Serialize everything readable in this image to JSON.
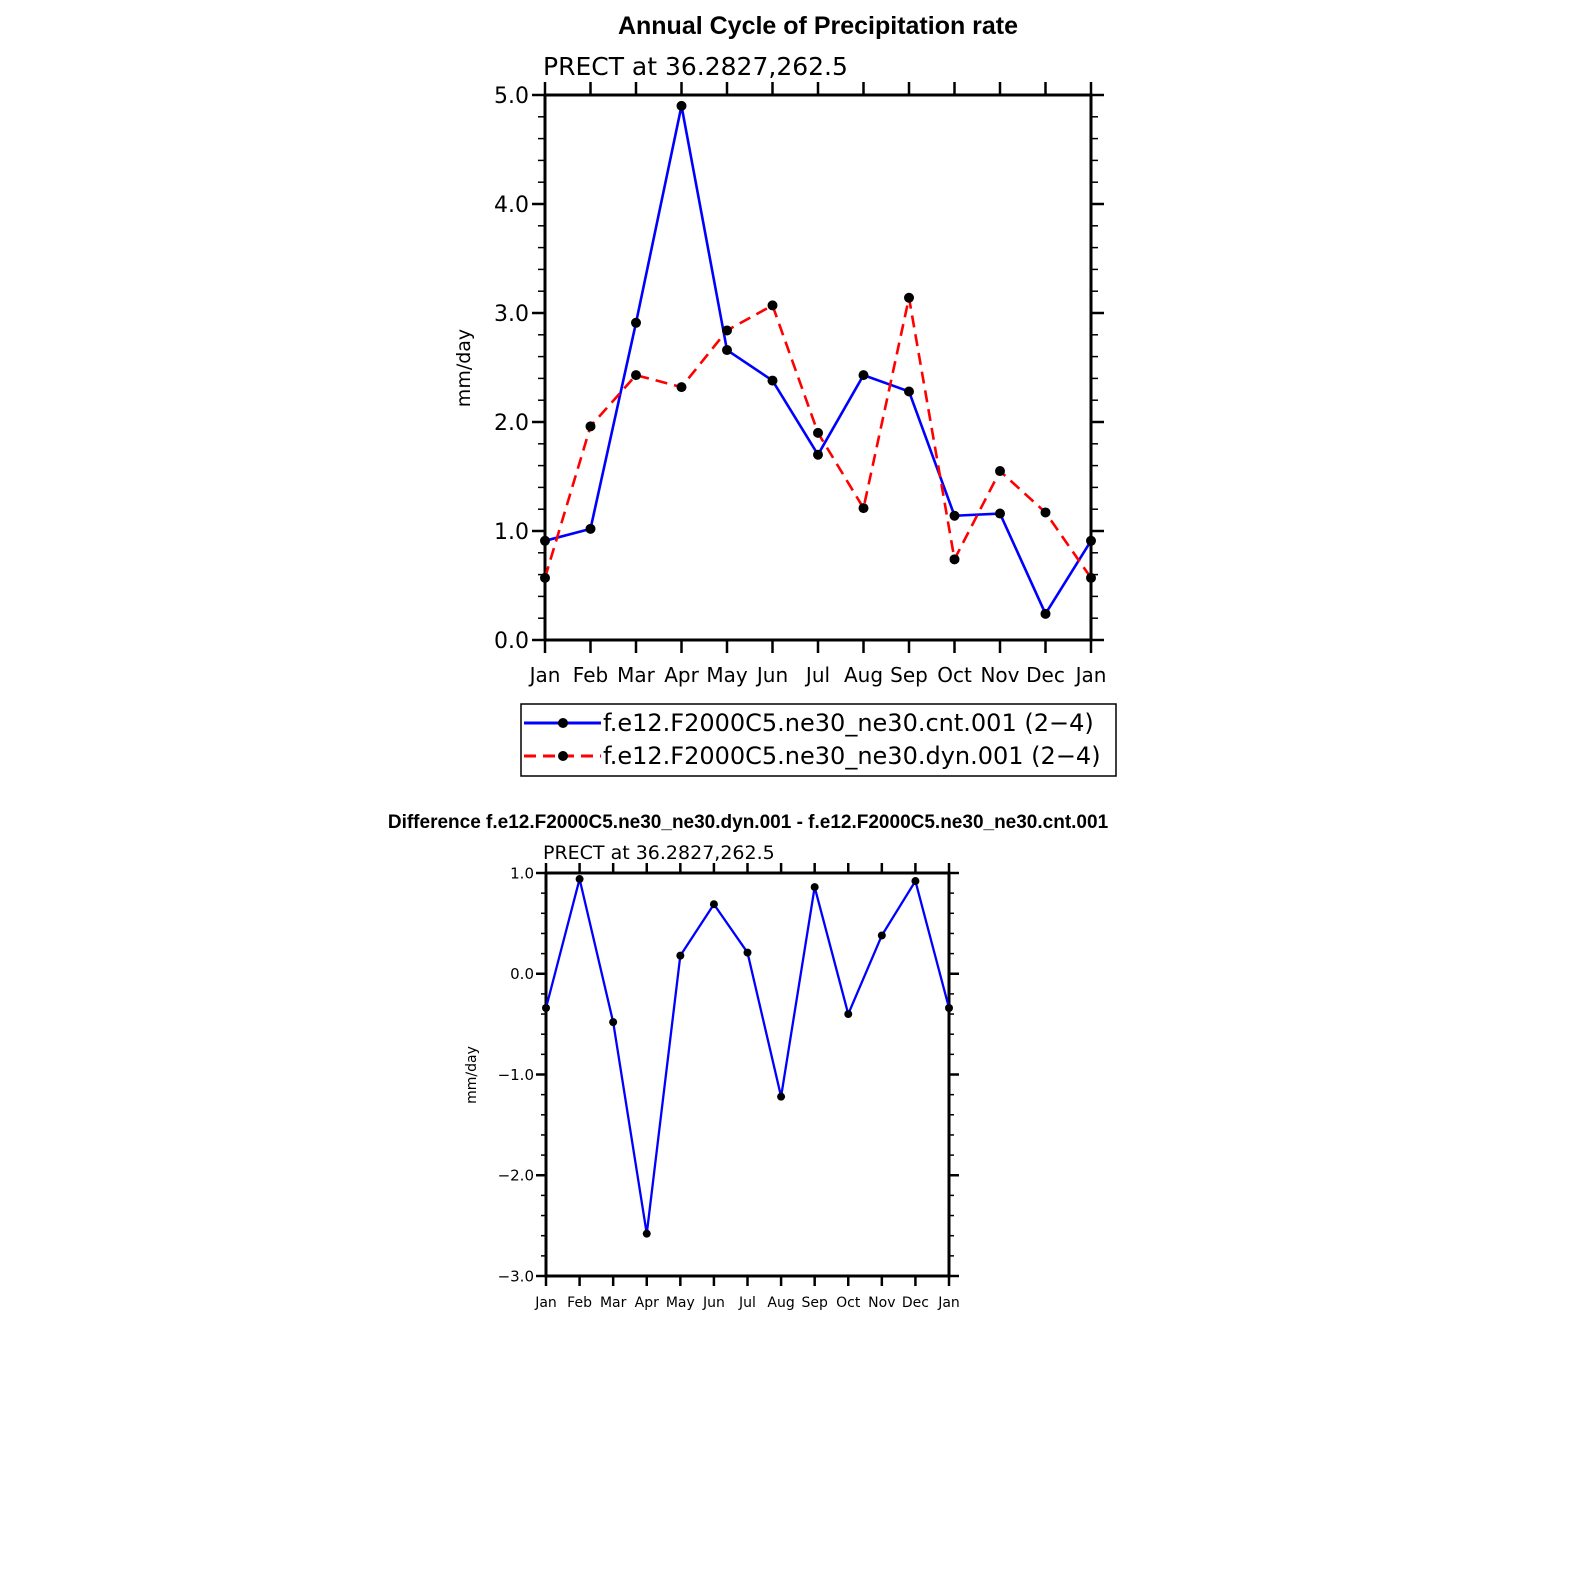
{
  "chart_data": [
    {
      "type": "line",
      "title": "Annual Cycle of Precipitation rate",
      "subtitle": "PRECT at 36.2827,262.5",
      "xlabel": "",
      "ylabel": "mm/day",
      "ylim": [
        0,
        5
      ],
      "yticks": [
        "0.0",
        "1.0",
        "2.0",
        "3.0",
        "4.0",
        "5.0"
      ],
      "categories": [
        "Jan",
        "Feb",
        "Mar",
        "Apr",
        "May",
        "Jun",
        "Jul",
        "Aug",
        "Sep",
        "Oct",
        "Nov",
        "Dec",
        "Jan"
      ],
      "legend_position": "bottom",
      "grid": false,
      "series": [
        {
          "name": "f.e12.F2000C5.ne30_ne30.cnt.001 (2−4)",
          "color": "#0000ff",
          "dash": "solid",
          "values": [
            0.91,
            1.02,
            2.91,
            4.9,
            2.66,
            2.38,
            1.7,
            2.43,
            2.28,
            1.14,
            1.16,
            0.24,
            0.91
          ]
        },
        {
          "name": "f.e12.F2000C5.ne30_ne30.dyn.001 (2−4)",
          "color": "#ff0000",
          "dash": "dashed",
          "values": [
            0.57,
            1.96,
            2.43,
            2.32,
            2.84,
            3.07,
            1.9,
            1.21,
            3.14,
            0.74,
            1.55,
            1.17,
            0.57
          ]
        }
      ]
    },
    {
      "type": "line",
      "title": "Difference f.e12.F2000C5.ne30_ne30.dyn.001 - f.e12.F2000C5.ne30_ne30.cnt.001",
      "subtitle": "PRECT at 36.2827,262.5",
      "xlabel": "",
      "ylabel": "mm/day",
      "ylim": [
        -3,
        1
      ],
      "yticks": [
        "−3.0",
        "−2.0",
        "−1.0",
        "0.0",
        "1.0"
      ],
      "categories": [
        "Jan",
        "Feb",
        "Mar",
        "Apr",
        "May",
        "Jun",
        "Jul",
        "Aug",
        "Sep",
        "Oct",
        "Nov",
        "Dec",
        "Jan"
      ],
      "grid": false,
      "series": [
        {
          "color": "#0000ff",
          "dash": "solid",
          "values": [
            -0.34,
            0.94,
            -0.48,
            -2.58,
            0.18,
            0.69,
            0.21,
            -1.22,
            0.86,
            -0.4,
            0.38,
            0.92,
            -0.34
          ]
        }
      ]
    }
  ]
}
